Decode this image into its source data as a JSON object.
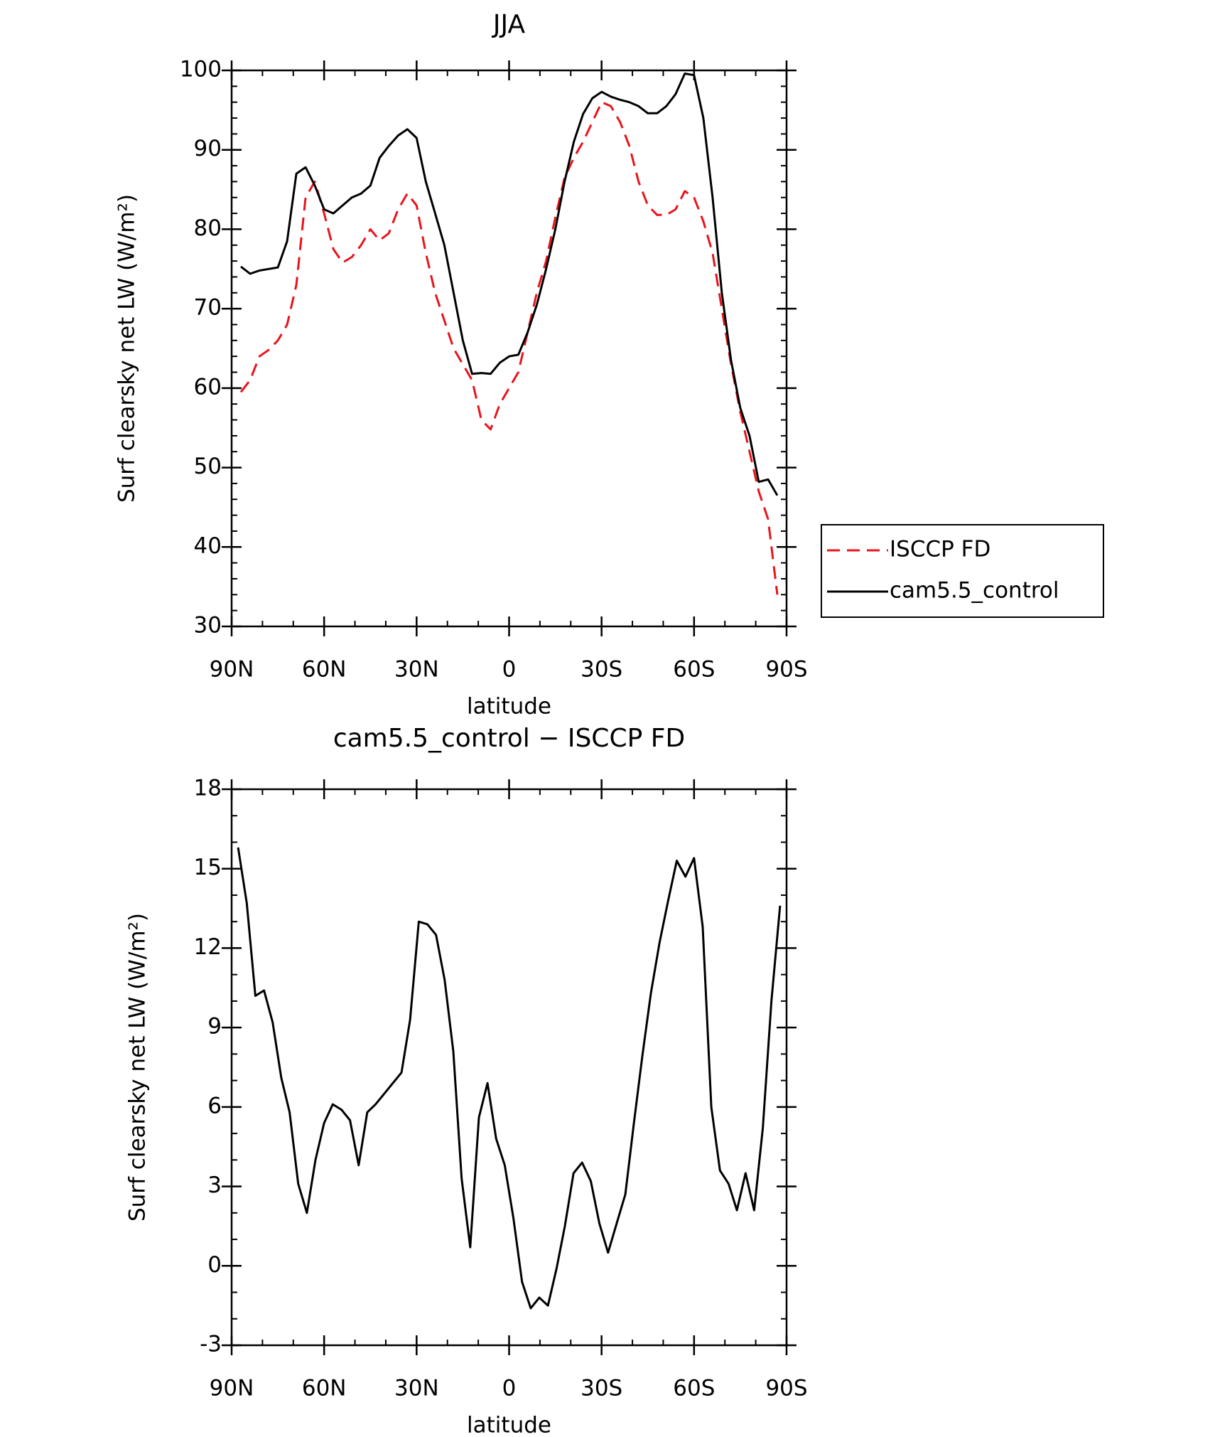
{
  "chart_data": [
    {
      "type": "line",
      "title": "JJA",
      "xlabel": "latitude",
      "ylabel": "Surf clearsky net LW (W/m²)",
      "x": [
        87,
        84,
        81,
        78,
        75,
        72,
        69,
        66,
        63,
        60,
        57,
        54,
        51,
        48,
        45,
        42,
        39,
        36,
        33,
        30,
        27,
        24,
        21,
        18,
        15,
        12,
        9,
        6,
        3,
        0,
        -3,
        -6,
        -9,
        -12,
        -15,
        -18,
        -21,
        -24,
        -27,
        -30,
        -33,
        -36,
        -39,
        -42,
        -45,
        -48,
        -51,
        -54,
        -57,
        -60,
        -63,
        -66,
        -69,
        -72,
        -75,
        -78,
        -81,
        -84,
        -87
      ],
      "series": [
        {
          "name": "ISCCP FD",
          "color": "#e8141c",
          "dashed": true,
          "values": [
            59.5,
            61,
            64,
            64.8,
            66,
            68,
            73,
            84,
            86,
            82,
            77.5,
            75.8,
            76.5,
            78,
            80,
            78.6,
            79.5,
            82.5,
            84.5,
            83,
            77,
            72,
            68.5,
            65,
            63,
            61,
            56,
            54.8,
            58,
            60,
            62,
            67,
            72,
            76,
            81.5,
            86.5,
            89,
            91,
            93.5,
            96,
            95.5,
            93.5,
            90.5,
            86,
            83,
            81.8,
            81.8,
            82.5,
            84.8,
            84,
            81,
            77,
            70,
            63,
            57,
            52,
            47,
            43.5,
            34
          ]
        },
        {
          "name": "cam5.5_control",
          "color": "#000000",
          "dashed": false,
          "values": [
            75.3,
            74.4,
            74.8,
            75,
            75.2,
            78.5,
            87,
            87.8,
            85.5,
            82.5,
            82,
            83,
            84,
            84.5,
            85.5,
            89,
            90.5,
            91.8,
            92.6,
            91.5,
            86,
            82,
            78,
            72,
            66,
            61.8,
            61.9,
            61.8,
            63.2,
            64,
            64.2,
            67,
            70.5,
            75,
            80,
            86,
            91,
            94.5,
            96.5,
            97.3,
            96.7,
            96.3,
            96,
            95.5,
            94.6,
            94.6,
            95.5,
            97,
            99.6,
            99.4,
            94,
            84,
            72,
            63.5,
            57.5,
            54,
            48.2,
            48.5,
            46.5
          ]
        }
      ],
      "xlim": [
        90,
        -90
      ],
      "xticks": [
        {
          "value": 90,
          "label": "90N"
        },
        {
          "value": 60,
          "label": "60N"
        },
        {
          "value": 30,
          "label": "30N"
        },
        0,
        {
          "value": -30,
          "label": "30S"
        },
        {
          "value": -60,
          "label": "60S"
        },
        {
          "value": -90,
          "label": "90S"
        }
      ],
      "ylim": [
        30,
        100
      ],
      "yticks": [
        30,
        40,
        50,
        60,
        70,
        80,
        90,
        100
      ],
      "legend": "right"
    },
    {
      "type": "line",
      "title": "cam5.5_control − ISCCP FD",
      "xlabel": "latitude",
      "ylabel": "Surf clearsky net LW (W/m²)",
      "x": [
        87.9,
        85.1,
        82.3,
        79.5,
        76.7,
        73.9,
        71.2,
        68.4,
        65.6,
        62.8,
        60.0,
        57.2,
        54.4,
        51.6,
        48.8,
        46.0,
        43.3,
        40.5,
        37.7,
        34.9,
        32.1,
        29.3,
        26.5,
        23.7,
        20.9,
        18.1,
        15.4,
        12.6,
        9.8,
        7.0,
        4.2,
        1.4,
        -1.4,
        -4.2,
        -7.0,
        -9.8,
        -12.6,
        -15.4,
        -18.1,
        -20.9,
        -23.7,
        -26.5,
        -29.3,
        -32.1,
        -34.9,
        -37.7,
        -40.5,
        -43.3,
        -46.0,
        -48.8,
        -51.6,
        -54.4,
        -57.2,
        -60.0,
        -62.8,
        -65.6,
        -68.4,
        -71.2,
        -73.9,
        -76.7,
        -79.5,
        -82.3,
        -85.1,
        -87.9
      ],
      "series": [
        {
          "name": "cam5.5_control − ISCCP FD",
          "color": "#000000",
          "dashed": false,
          "values": [
            15.8,
            13.7,
            10.2,
            10.4,
            9.2,
            7.1,
            5.8,
            3.1,
            2.0,
            4.0,
            5.4,
            6.1,
            5.9,
            5.5,
            3.8,
            5.8,
            6.1,
            6.5,
            6.9,
            7.3,
            9.3,
            13.0,
            12.9,
            12.5,
            10.8,
            8.1,
            3.3,
            0.7,
            5.6,
            6.9,
            4.8,
            3.8,
            1.8,
            -0.6,
            -1.6,
            -1.2,
            -1.5,
            -0.1,
            1.5,
            3.5,
            3.9,
            3.2,
            1.6,
            0.5,
            1.6,
            2.7,
            5.4,
            8.0,
            10.3,
            12.2,
            13.8,
            15.3,
            14.7,
            15.4,
            12.8,
            6.0,
            3.6,
            3.1,
            2.1,
            3.5,
            2.1,
            5.2,
            10.0,
            13.6
          ]
        }
      ],
      "xlim": [
        90,
        -90
      ],
      "xticks": [
        {
          "value": 90,
          "label": "90N"
        },
        {
          "value": 60,
          "label": "60N"
        },
        {
          "value": 30,
          "label": "30N"
        },
        0,
        {
          "value": -30,
          "label": "30S"
        },
        {
          "value": -60,
          "label": "60S"
        },
        {
          "value": -90,
          "label": "90S"
        }
      ],
      "ylim": [
        -3,
        18
      ],
      "yticks": [
        -3,
        0,
        3,
        6,
        9,
        12,
        15,
        18
      ]
    }
  ]
}
